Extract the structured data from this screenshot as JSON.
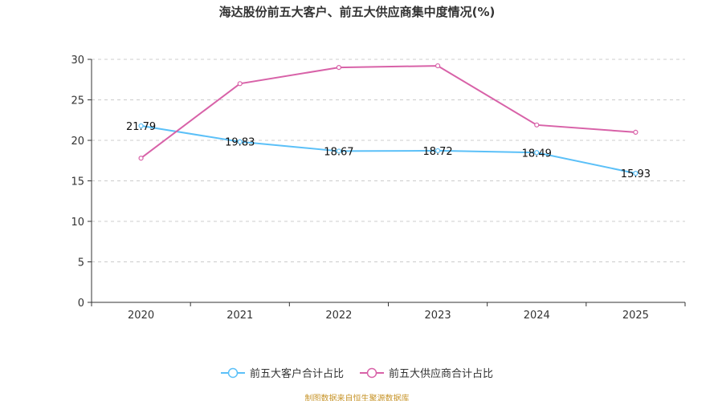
{
  "title": "海达股份前五大客户、前五大供应商集中度情况(%)",
  "source": "制图数据来自恒生聚源数据库",
  "chart_data": {
    "type": "line",
    "title": "海达股份前五大客户、前五大供应商集中度情况(%)",
    "categories": [
      "2020",
      "2021",
      "2022",
      "2023",
      "2024",
      "2025"
    ],
    "ylim": [
      0,
      30
    ],
    "yticks": [
      0,
      5,
      10,
      15,
      20,
      25,
      30
    ],
    "grid": true,
    "legend_position": "bottom",
    "series": [
      {
        "name": "前五大客户合计占比",
        "color": "#5bc0f8",
        "values": [
          21.79,
          19.83,
          18.67,
          18.72,
          18.49,
          15.93
        ],
        "labels": [
          "21.79",
          "19.83",
          "18.67",
          "18.72",
          "18.49",
          "15.93"
        ]
      },
      {
        "name": "前五大供应商合计占比",
        "color": "#d862a8",
        "values": [
          17.8,
          27.0,
          29.0,
          29.2,
          21.9,
          21.0
        ]
      }
    ]
  }
}
